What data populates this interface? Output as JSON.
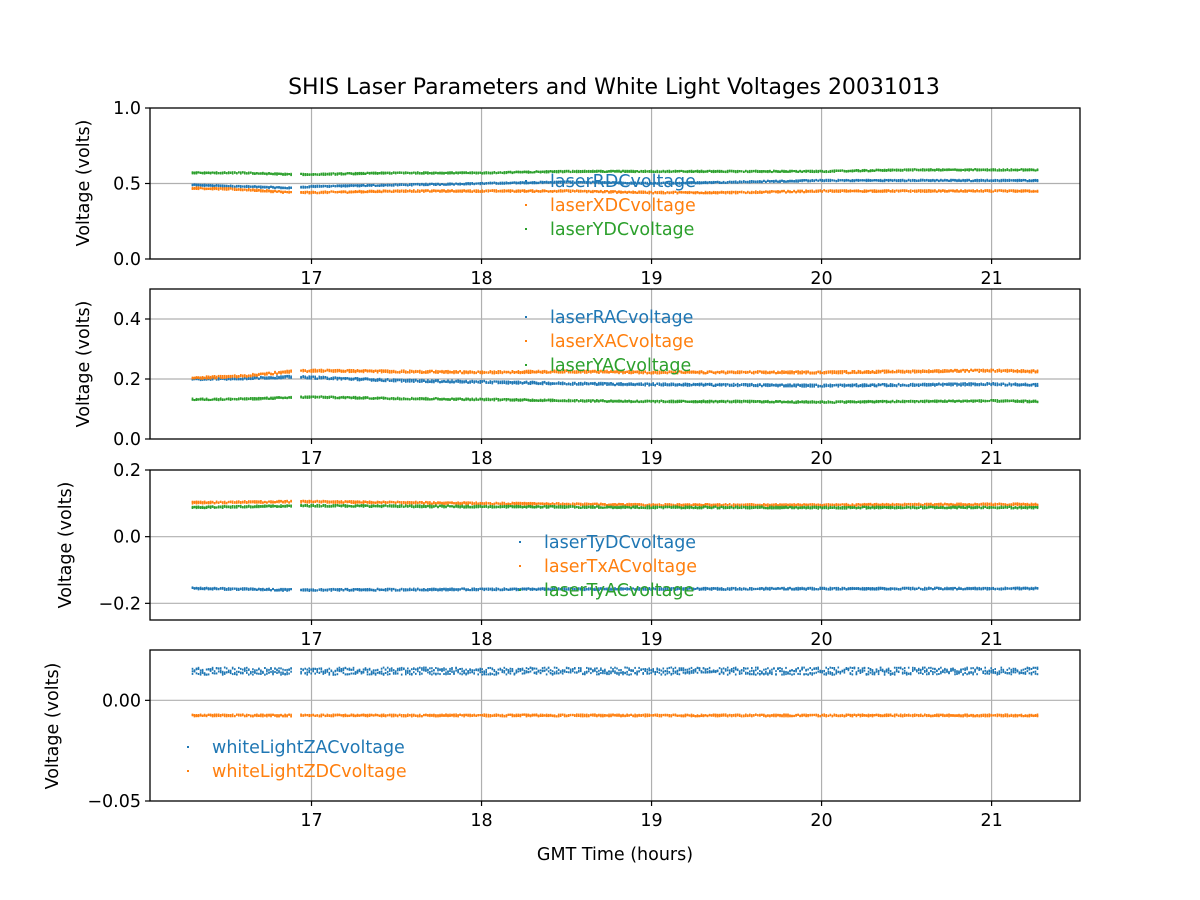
{
  "title": "SHIS Laser Parameters and White Light Voltages 20031013",
  "colors": {
    "c0": "#1f77b4",
    "c1": "#ff7f0e",
    "c2": "#2ca02c",
    "grid": "#b0b0b0",
    "axis": "#000000"
  },
  "chart_data": [
    {
      "type": "scatter",
      "xlabel": "",
      "ylabel": "Voltage (volts)",
      "xlim": [
        16.05,
        21.52
      ],
      "ylim": [
        0.0,
        1.0
      ],
      "xticks": [
        17,
        18,
        19,
        20,
        21
      ],
      "yticks": [
        0.0,
        0.5,
        1.0
      ],
      "ytick_labels": [
        "0.0",
        "0.5",
        "1.0"
      ],
      "grid": true,
      "legend_position": "center",
      "x_range": [
        16.3,
        21.27
      ],
      "gap": [
        16.88,
        16.93
      ],
      "series": [
        {
          "name": "laserRDCvoltage",
          "color": "#1f77b4",
          "points": [
            [
              16.3,
              0.49
            ],
            [
              16.6,
              0.48
            ],
            [
              16.88,
              0.47
            ],
            [
              17.0,
              0.48
            ],
            [
              17.5,
              0.49
            ],
            [
              18.0,
              0.5
            ],
            [
              18.5,
              0.51
            ],
            [
              19.0,
              0.5
            ],
            [
              19.5,
              0.51
            ],
            [
              20.0,
              0.52
            ],
            [
              20.5,
              0.52
            ],
            [
              21.0,
              0.52
            ],
            [
              21.27,
              0.52
            ]
          ],
          "noise": 0.005
        },
        {
          "name": "laserXDCvoltage",
          "color": "#ff7f0e",
          "points": [
            [
              16.3,
              0.47
            ],
            [
              16.6,
              0.46
            ],
            [
              16.88,
              0.44
            ],
            [
              17.0,
              0.44
            ],
            [
              17.5,
              0.45
            ],
            [
              18.0,
              0.45
            ],
            [
              18.5,
              0.45
            ],
            [
              19.0,
              0.44
            ],
            [
              19.5,
              0.44
            ],
            [
              20.0,
              0.45
            ],
            [
              20.5,
              0.45
            ],
            [
              21.0,
              0.45
            ],
            [
              21.27,
              0.45
            ]
          ],
          "noise": 0.006
        },
        {
          "name": "laserYDCvoltage",
          "color": "#2ca02c",
          "points": [
            [
              16.3,
              0.57
            ],
            [
              16.6,
              0.57
            ],
            [
              16.88,
              0.56
            ],
            [
              17.0,
              0.56
            ],
            [
              17.5,
              0.57
            ],
            [
              18.0,
              0.57
            ],
            [
              18.5,
              0.58
            ],
            [
              19.0,
              0.58
            ],
            [
              19.5,
              0.58
            ],
            [
              20.0,
              0.58
            ],
            [
              20.5,
              0.59
            ],
            [
              21.0,
              0.59
            ],
            [
              21.27,
              0.59
            ]
          ],
          "noise": 0.005
        }
      ]
    },
    {
      "type": "scatter",
      "xlabel": "",
      "ylabel": "Voltage (volts)",
      "xlim": [
        16.05,
        21.52
      ],
      "ylim": [
        0.0,
        0.5
      ],
      "xticks": [
        17,
        18,
        19,
        20,
        21
      ],
      "yticks": [
        0.0,
        0.2,
        0.4
      ],
      "ytick_labels": [
        "0.0",
        "0.2",
        "0.4"
      ],
      "grid": true,
      "legend_position": "top-center",
      "x_range": [
        16.3,
        21.27
      ],
      "gap": [
        16.88,
        16.93
      ],
      "series": [
        {
          "name": "laserRACvoltage",
          "color": "#1f77b4",
          "points": [
            [
              16.3,
              0.2
            ],
            [
              16.6,
              0.202
            ],
            [
              16.88,
              0.207
            ],
            [
              17.0,
              0.205
            ],
            [
              17.5,
              0.195
            ],
            [
              18.0,
              0.19
            ],
            [
              18.5,
              0.185
            ],
            [
              19.0,
              0.182
            ],
            [
              19.5,
              0.18
            ],
            [
              20.0,
              0.178
            ],
            [
              20.5,
              0.18
            ],
            [
              21.0,
              0.183
            ],
            [
              21.27,
              0.18
            ]
          ],
          "noise": 0.004
        },
        {
          "name": "laserXACvoltage",
          "color": "#ff7f0e",
          "points": [
            [
              16.3,
              0.203
            ],
            [
              16.6,
              0.21
            ],
            [
              16.88,
              0.225
            ],
            [
              17.0,
              0.228
            ],
            [
              17.5,
              0.225
            ],
            [
              18.0,
              0.222
            ],
            [
              18.5,
              0.225
            ],
            [
              19.0,
              0.222
            ],
            [
              19.5,
              0.222
            ],
            [
              20.0,
              0.222
            ],
            [
              20.5,
              0.225
            ],
            [
              21.0,
              0.228
            ],
            [
              21.27,
              0.225
            ]
          ],
          "noise": 0.004
        },
        {
          "name": "laserYACvoltage",
          "color": "#2ca02c",
          "points": [
            [
              16.3,
              0.132
            ],
            [
              16.6,
              0.133
            ],
            [
              16.88,
              0.138
            ],
            [
              17.0,
              0.14
            ],
            [
              17.5,
              0.135
            ],
            [
              18.0,
              0.132
            ],
            [
              18.5,
              0.128
            ],
            [
              19.0,
              0.125
            ],
            [
              19.5,
              0.125
            ],
            [
              20.0,
              0.123
            ],
            [
              20.5,
              0.125
            ],
            [
              21.0,
              0.127
            ],
            [
              21.27,
              0.125
            ]
          ],
          "noise": 0.003
        }
      ]
    },
    {
      "type": "scatter",
      "xlabel": "",
      "ylabel": "Voltage (volts)",
      "xlim": [
        16.05,
        21.52
      ],
      "ylim": [
        -0.25,
        0.2
      ],
      "xticks": [
        17,
        18,
        19,
        20,
        21
      ],
      "yticks": [
        -0.2,
        0.0,
        0.2
      ],
      "ytick_labels": [
        "−0.2",
        "0.0",
        "0.2"
      ],
      "grid": true,
      "legend_position": "lower-center",
      "x_range": [
        16.3,
        21.27
      ],
      "gap": [
        16.88,
        16.93
      ],
      "series": [
        {
          "name": "laserTyDCvoltage",
          "color": "#1f77b4",
          "points": [
            [
              16.3,
              -0.155
            ],
            [
              16.88,
              -0.16
            ],
            [
              17.0,
              -0.16
            ],
            [
              18.0,
              -0.158
            ],
            [
              19.0,
              -0.157
            ],
            [
              20.0,
              -0.156
            ],
            [
              21.0,
              -0.156
            ],
            [
              21.27,
              -0.155
            ]
          ],
          "noise": 0.003
        },
        {
          "name": "laserTxACvoltage",
          "color": "#ff7f0e",
          "points": [
            [
              16.3,
              0.102
            ],
            [
              16.88,
              0.105
            ],
            [
              17.0,
              0.105
            ],
            [
              18.0,
              0.1
            ],
            [
              19.0,
              0.095
            ],
            [
              20.0,
              0.095
            ],
            [
              21.0,
              0.097
            ],
            [
              21.27,
              0.097
            ]
          ],
          "noise": 0.003
        },
        {
          "name": "laserTyACvoltage",
          "color": "#2ca02c",
          "points": [
            [
              16.3,
              0.088
            ],
            [
              16.88,
              0.092
            ],
            [
              17.0,
              0.093
            ],
            [
              18.0,
              0.09
            ],
            [
              19.0,
              0.088
            ],
            [
              20.0,
              0.087
            ],
            [
              21.0,
              0.088
            ],
            [
              21.27,
              0.087
            ]
          ],
          "noise": 0.003
        }
      ]
    },
    {
      "type": "scatter",
      "xlabel": "GMT Time (hours)",
      "ylabel": "Voltage (volts)",
      "xlim": [
        16.05,
        21.52
      ],
      "ylim": [
        -0.05,
        0.025
      ],
      "xticks": [
        17,
        18,
        19,
        20,
        21
      ],
      "yticks": [
        -0.05,
        0.0
      ],
      "ytick_labels": [
        "−0.05",
        "0.00"
      ],
      "grid": true,
      "legend_position": "lower-left",
      "x_range": [
        16.3,
        21.27
      ],
      "gap": [
        16.88,
        16.93
      ],
      "series": [
        {
          "name": "whiteLightZACvoltage",
          "color": "#1f77b4",
          "points": [
            [
              16.3,
              0.0145
            ],
            [
              21.27,
              0.0145
            ]
          ],
          "noise": 0.0018
        },
        {
          "name": "whiteLightZDCvoltage",
          "color": "#ff7f0e",
          "points": [
            [
              16.3,
              -0.0075
            ],
            [
              21.27,
              -0.0075
            ]
          ],
          "noise": 0.0005
        }
      ]
    }
  ]
}
